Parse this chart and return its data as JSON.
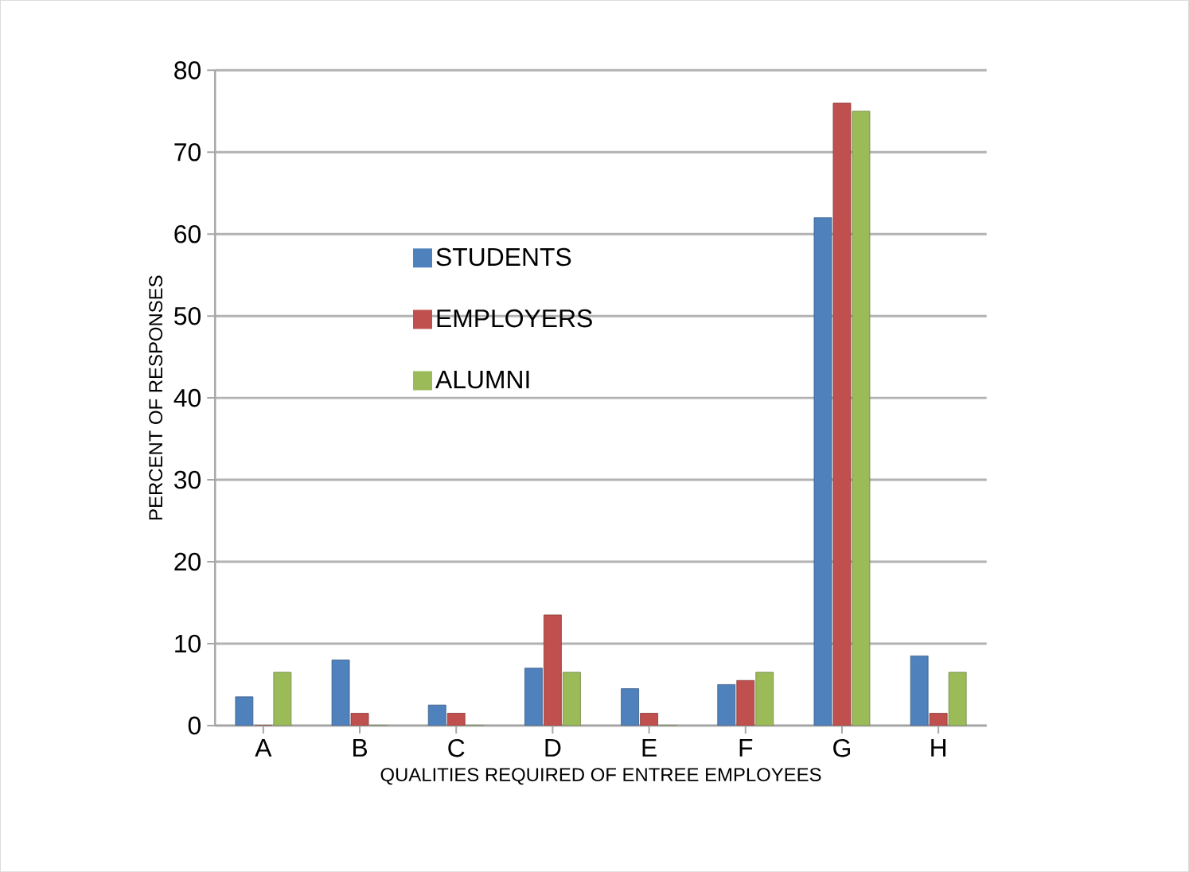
{
  "chart_data": {
    "type": "bar",
    "xlabel": "QUALITIES REQUIRED OF ENTREE EMPLOYEES",
    "ylabel": "PERCENT OF RESPONSES",
    "categories": [
      "A",
      "B",
      "C",
      "D",
      "E",
      "F",
      "G",
      "H"
    ],
    "series": [
      {
        "name": "STUDENTS",
        "color": "#4f81bd",
        "values": [
          3.5,
          8,
          2.5,
          7,
          4.5,
          5,
          62,
          8.5
        ]
      },
      {
        "name": "EMPLOYERS",
        "color": "#c0504d",
        "values": [
          0,
          1.5,
          1.5,
          13.5,
          1.5,
          5.5,
          76,
          1.5
        ]
      },
      {
        "name": "ALUMNI",
        "color": "#9bbb59",
        "values": [
          6.5,
          0,
          0,
          6.5,
          0,
          6.5,
          75,
          6.5
        ]
      }
    ],
    "ylim": [
      0,
      80
    ],
    "yticks": [
      0,
      10,
      20,
      30,
      40,
      50,
      60,
      70,
      80
    ],
    "grid": "y",
    "legend": "center"
  }
}
